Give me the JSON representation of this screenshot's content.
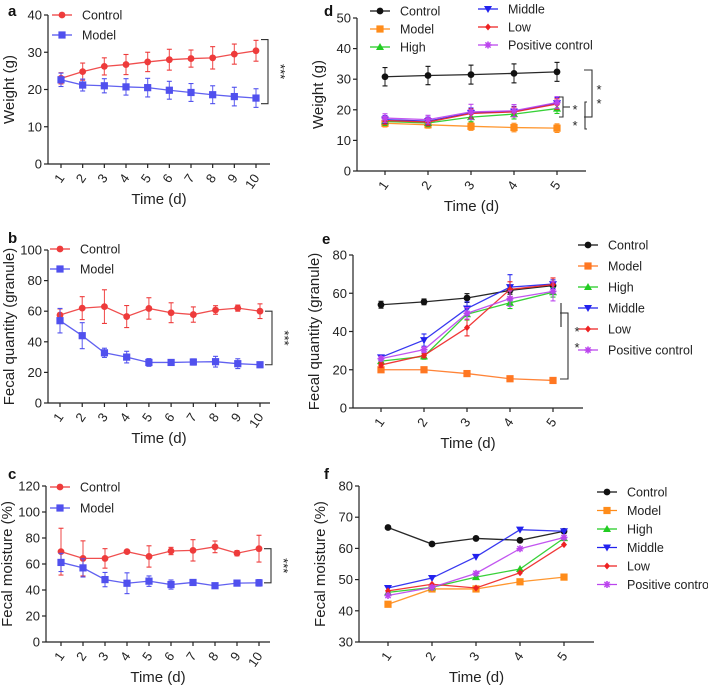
{
  "chart_data": [
    {
      "id": "a",
      "panel_label": "a",
      "type": "line",
      "title": "",
      "xlabel": "Time (d)",
      "ylabel": "Weight (g)",
      "x": [
        1,
        2,
        3,
        4,
        5,
        6,
        7,
        8,
        9,
        10
      ],
      "ylim": [
        0,
        40
      ],
      "yticks": [
        0,
        10,
        20,
        30,
        40
      ],
      "legend": "top-left",
      "series": [
        {
          "name": "Control",
          "color": "#ee3b3b",
          "marker": "circle",
          "values": [
            23.0,
            24.8,
            26.2,
            26.7,
            27.4,
            28.0,
            28.3,
            28.5,
            29.5,
            30.4
          ],
          "errors": [
            1.5,
            2.3,
            2.3,
            2.7,
            2.6,
            2.8,
            2.3,
            3.0,
            2.7,
            2.8
          ]
        },
        {
          "name": "Model",
          "color": "#5050ee",
          "marker": "square",
          "values": [
            22.6,
            21.2,
            21.0,
            20.7,
            20.5,
            19.8,
            19.2,
            18.6,
            18.1,
            17.7
          ],
          "errors": [
            1.8,
            1.6,
            1.9,
            2.2,
            2.5,
            2.4,
            2.4,
            2.4,
            2.5,
            2.5
          ]
        }
      ],
      "significance": [
        {
          "label": "***",
          "between": [
            "Control",
            "Model"
          ]
        }
      ]
    },
    {
      "id": "b",
      "panel_label": "b",
      "type": "line",
      "title": "",
      "xlabel": "Time (d)",
      "ylabel": "Fecal quantity (granule)",
      "x": [
        1,
        2,
        3,
        4,
        5,
        6,
        7,
        8,
        9,
        10
      ],
      "ylim": [
        0,
        100
      ],
      "yticks": [
        0,
        20,
        40,
        60,
        80,
        100
      ],
      "legend": "top-left",
      "series": [
        {
          "name": "Control",
          "color": "#ee3b3b",
          "marker": "circle",
          "values": [
            57.5,
            62,
            63,
            56.5,
            61.8,
            59,
            57.8,
            60.8,
            62,
            60
          ],
          "errors": [
            4,
            7.5,
            11,
            7.2,
            7,
            6.5,
            5,
            2.8,
            2,
            4.8
          ]
        },
        {
          "name": "Model",
          "color": "#5050ee",
          "marker": "square",
          "values": [
            53.8,
            44,
            32.8,
            30,
            26.5,
            26.5,
            26.8,
            27,
            25.7,
            25
          ],
          "errors": [
            8,
            8.5,
            3,
            3.8,
            2.5,
            1.5,
            2,
            3.5,
            3.2,
            1.8
          ]
        }
      ],
      "significance": [
        {
          "label": "***",
          "between": [
            "Control",
            "Model"
          ]
        }
      ]
    },
    {
      "id": "c",
      "panel_label": "c",
      "type": "line",
      "title": "",
      "xlabel": "Time (d)",
      "ylabel": "Fecal moisture (%)",
      "x": [
        1,
        2,
        3,
        4,
        5,
        6,
        7,
        8,
        9,
        10
      ],
      "ylim": [
        0,
        120
      ],
      "yticks": [
        0,
        20,
        40,
        60,
        80,
        100,
        120
      ],
      "legend": "top-left",
      "series": [
        {
          "name": "Control",
          "color": "#ee3b3b",
          "marker": "circle",
          "values": [
            69.5,
            64.3,
            64.3,
            69.5,
            65.8,
            70,
            70.5,
            73.2,
            68.3,
            71.8
          ],
          "errors": [
            18,
            13.5,
            7.5,
            1,
            8.2,
            2.8,
            8.2,
            4.5,
            2,
            10.3
          ]
        },
        {
          "name": "Model",
          "color": "#5050ee",
          "marker": "square",
          "values": [
            61.2,
            57,
            48,
            45.2,
            46.8,
            44.2,
            45.8,
            43.3,
            45.3,
            45.5
          ],
          "errors": [
            7,
            7,
            5.5,
            8,
            4,
            3.5,
            2,
            1,
            1,
            2.5
          ]
        }
      ],
      "significance": [
        {
          "label": "***",
          "between": [
            "Control",
            "Model"
          ]
        }
      ]
    },
    {
      "id": "d",
      "panel_label": "d",
      "type": "line",
      "title": "",
      "xlabel": "Time (d)",
      "ylabel": "Weight (g)",
      "x": [
        1,
        2,
        3,
        4,
        5
      ],
      "ylim": [
        0,
        50
      ],
      "yticks": [
        0,
        10,
        20,
        30,
        40,
        50
      ],
      "legend": "top",
      "series": [
        {
          "name": "Control",
          "color": "#111111",
          "marker": "circle",
          "values": [
            30.8,
            31.2,
            31.5,
            31.9,
            32.4
          ],
          "errors": [
            3,
            3,
            3.1,
            3.1,
            3.1
          ]
        },
        {
          "name": "Model",
          "color": "#ff8c1a",
          "marker": "square",
          "values": [
            15.6,
            15.1,
            14.6,
            14.2,
            14.0
          ],
          "errors": [
            1.2,
            1.1,
            1.3,
            1.4,
            1.4
          ]
        },
        {
          "name": "High",
          "color": "#22cc22",
          "marker": "triangle-up",
          "values": [
            16.2,
            15.7,
            17.6,
            18.6,
            20.4
          ],
          "errors": [
            1.3,
            1.2,
            1.5,
            1.6,
            1.6
          ]
        },
        {
          "name": "Middle",
          "color": "#2222ee",
          "marker": "triangle-down",
          "values": [
            16.8,
            16.3,
            19.0,
            19.4,
            22.2
          ],
          "errors": [
            1.3,
            1.3,
            1.6,
            1.7,
            1.8
          ]
        },
        {
          "name": "Low",
          "color": "#ee2222",
          "marker": "diamond",
          "values": [
            16.5,
            16.0,
            18.8,
            19.3,
            21.9
          ],
          "errors": [
            1.2,
            1.2,
            1.5,
            1.6,
            1.7
          ]
        },
        {
          "name": "Positive control",
          "color": "#bb44ee",
          "marker": "star",
          "values": [
            17.3,
            16.8,
            19.3,
            19.7,
            22.4
          ],
          "errors": [
            1.4,
            1.4,
            2.5,
            2.0,
            1.9
          ]
        }
      ],
      "significance": [
        {
          "label": "*",
          "between": [
            "Treatment groups",
            "Model"
          ]
        },
        {
          "label": "*",
          "between": [
            "Control",
            "Model"
          ]
        },
        {
          "label": "*",
          "between": [
            "Control",
            "Treatment groups"
          ]
        },
        {
          "label": "*",
          "between": [
            "Control",
            "Treatment groups"
          ]
        }
      ]
    },
    {
      "id": "e",
      "panel_label": "e",
      "type": "line",
      "title": "",
      "xlabel": "Time (d)",
      "ylabel": "Fecal quantity (granule)",
      "x": [
        1,
        2,
        3,
        4,
        5
      ],
      "ylim": [
        0,
        80
      ],
      "yticks": [
        0,
        20,
        40,
        60,
        80
      ],
      "legend": "right",
      "series": [
        {
          "name": "Control",
          "color": "#111111",
          "marker": "circle",
          "values": [
            54,
            55.5,
            57.5,
            61.5,
            64
          ],
          "errors": [
            1.8,
            1.5,
            2.3,
            2,
            1.5
          ]
        },
        {
          "name": "Model",
          "color": "#ff7722",
          "marker": "square",
          "values": [
            20,
            20,
            18,
            15.3,
            14.4
          ],
          "errors": [
            0.6,
            0.6,
            0.6,
            0.6,
            0.6
          ]
        },
        {
          "name": "High",
          "color": "#22cc22",
          "marker": "triangle-up",
          "values": [
            24.5,
            27,
            49,
            55,
            60.5
          ],
          "errors": [
            1.5,
            1.5,
            3,
            3,
            2.5
          ]
        },
        {
          "name": "Middle",
          "color": "#2222ee",
          "marker": "triangle-down",
          "values": [
            26.5,
            35.5,
            52,
            63.2,
            64.8
          ],
          "errors": [
            1.2,
            3.2,
            3.5,
            6.5,
            2.2
          ]
        },
        {
          "name": "Low",
          "color": "#ee2222",
          "marker": "diamond",
          "values": [
            22.5,
            27.5,
            42,
            62,
            64.5
          ],
          "errors": [
            1.2,
            1.2,
            4.3,
            4,
            3.5
          ]
        },
        {
          "name": "Positive control",
          "color": "#bb44ee",
          "marker": "star",
          "values": [
            25.8,
            30.5,
            49.5,
            57.2,
            61
          ],
          "errors": [
            1.2,
            1.5,
            3,
            4,
            5
          ]
        }
      ],
      "significance": [
        {
          "label": "*",
          "between": [
            "Treatment groups",
            "Model"
          ]
        },
        {
          "label": "*",
          "between": [
            "Treatment groups",
            "Model"
          ]
        }
      ]
    },
    {
      "id": "f",
      "panel_label": "f",
      "type": "line",
      "title": "",
      "xlabel": "Time (d)",
      "ylabel": "Fecal moisture (%)",
      "x": [
        1,
        2,
        3,
        4,
        5
      ],
      "ylim": [
        30,
        80
      ],
      "yticks": [
        30,
        40,
        50,
        60,
        70,
        80
      ],
      "legend": "right",
      "series": [
        {
          "name": "Control",
          "color": "#111111",
          "marker": "circle",
          "values": [
            66.7,
            61.4,
            63.2,
            62.6,
            65.5
          ],
          "errors": null
        },
        {
          "name": "Model",
          "color": "#ff8c1a",
          "marker": "square",
          "values": [
            42.1,
            47.0,
            47.0,
            49.3,
            50.8
          ],
          "errors": null
        },
        {
          "name": "High",
          "color": "#22cc22",
          "marker": "triangle-up",
          "values": [
            45.9,
            47.5,
            50.8,
            53.4,
            63.3
          ],
          "errors": null
        },
        {
          "name": "Middle",
          "color": "#2222ee",
          "marker": "triangle-down",
          "values": [
            47.3,
            50.5,
            57.3,
            66.0,
            65.5
          ],
          "errors": null
        },
        {
          "name": "Low",
          "color": "#ee2222",
          "marker": "diamond",
          "values": [
            46.4,
            48.5,
            47.3,
            52.2,
            61.2
          ],
          "errors": null
        },
        {
          "name": "Positive control",
          "color": "#bb44ee",
          "marker": "star",
          "values": [
            44.9,
            47.5,
            52.0,
            59.9,
            63.5
          ],
          "errors": null
        }
      ],
      "significance": []
    }
  ]
}
